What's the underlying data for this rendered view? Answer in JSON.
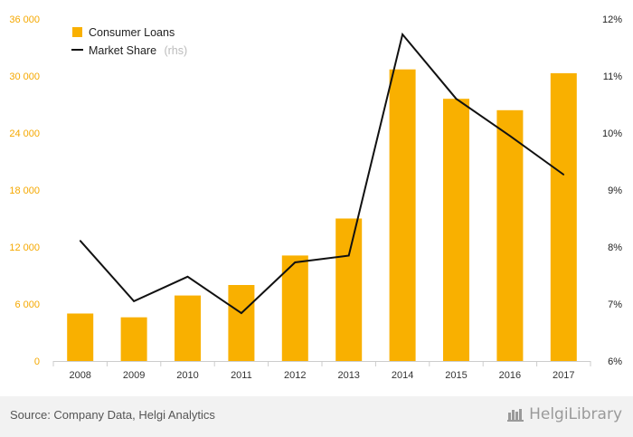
{
  "chart_data": {
    "type": "bar+line",
    "categories": [
      "2008",
      "2009",
      "2010",
      "2011",
      "2012",
      "2013",
      "2014",
      "2015",
      "2016",
      "2017"
    ],
    "series": [
      {
        "name": "Consumer Loans",
        "type": "bar",
        "axis": "left",
        "color": "#f9b000",
        "values": [
          5000,
          4600,
          6900,
          8000,
          11100,
          15000,
          30700,
          27600,
          26400,
          30300
        ]
      },
      {
        "name": "Market Share",
        "type": "line",
        "axis": "right",
        "color": "#111111",
        "values": [
          8.11,
          7.05,
          7.48,
          6.84,
          7.73,
          7.85,
          11.73,
          10.6,
          9.95,
          9.27
        ]
      }
    ],
    "y_left": {
      "min": 0,
      "max": 36000,
      "ticks": [
        0,
        6000,
        12000,
        18000,
        24000,
        30000,
        36000
      ],
      "tick_labels": [
        "0",
        "6 000",
        "12 000",
        "18 000",
        "24 000",
        "30 000",
        "36 000"
      ],
      "color": "#f5a800"
    },
    "y_right": {
      "min": 6,
      "max": 12,
      "ticks": [
        6,
        7,
        8,
        9,
        10,
        11,
        12
      ],
      "tick_labels": [
        "6%",
        "7%",
        "8%",
        "9%",
        "10%",
        "11%",
        "12%"
      ],
      "color": "#222222"
    },
    "legend": {
      "position": "top-left",
      "items": [
        {
          "label": "Consumer Loans",
          "suffix": ""
        },
        {
          "label": "Market Share",
          "suffix": "(rhs)"
        }
      ]
    },
    "grid": false
  },
  "footer": {
    "source": "Source: Company Data, Helgi Analytics",
    "brand": "HelgiLibrary"
  }
}
